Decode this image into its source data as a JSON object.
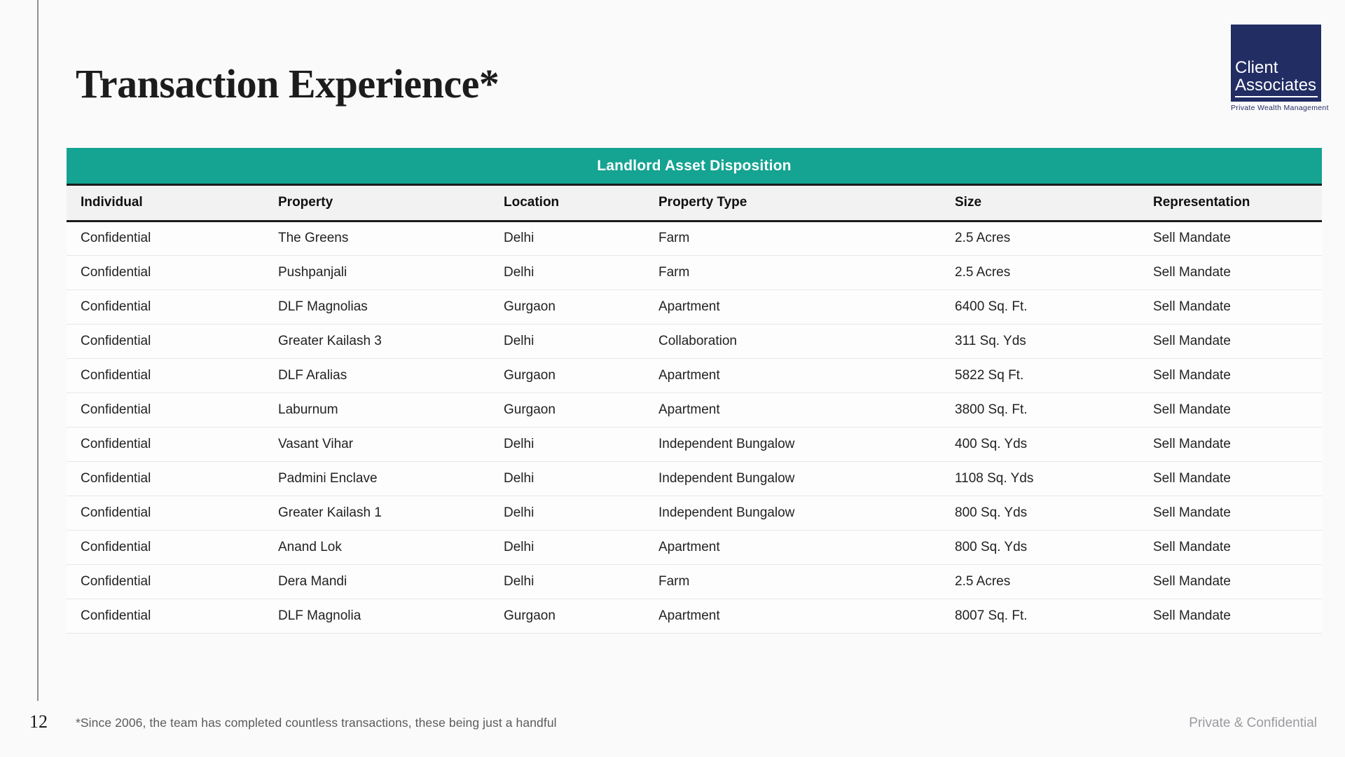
{
  "page": {
    "title": "Transaction Experience*",
    "page_number": "12",
    "footnote": "*Since 2006, the team has completed countless transactions, these being just a handful",
    "confidential_label": "Private & Confidential"
  },
  "logo": {
    "line1": "Client",
    "line2": "Associates",
    "tagline": "Private Wealth Management",
    "navy_color": "#222D64"
  },
  "table": {
    "banner": "Landlord Asset Disposition",
    "banner_color": "#15A392",
    "columns": [
      "Individual",
      "Property",
      "Location",
      "Property Type",
      "Size",
      "Representation"
    ],
    "rows": [
      [
        "Confidential",
        "The Greens",
        "Delhi",
        "Farm",
        "2.5 Acres",
        "Sell Mandate"
      ],
      [
        "Confidential",
        "Pushpanjali",
        "Delhi",
        "Farm",
        "2.5 Acres",
        "Sell Mandate"
      ],
      [
        "Confidential",
        "DLF Magnolias",
        "Gurgaon",
        "Apartment",
        "6400 Sq. Ft.",
        "Sell Mandate"
      ],
      [
        "Confidential",
        "Greater Kailash 3",
        "Delhi",
        "Collaboration",
        "311 Sq. Yds",
        "Sell Mandate"
      ],
      [
        "Confidential",
        "DLF Aralias",
        "Gurgaon",
        "Apartment",
        "5822 Sq Ft.",
        "Sell Mandate"
      ],
      [
        "Confidential",
        "Laburnum",
        "Gurgaon",
        "Apartment",
        "3800 Sq. Ft.",
        "Sell Mandate"
      ],
      [
        "Confidential",
        "Vasant Vihar",
        "Delhi",
        "Independent Bungalow",
        "400 Sq. Yds",
        "Sell Mandate"
      ],
      [
        "Confidential",
        "Padmini Enclave",
        "Delhi",
        "Independent Bungalow",
        "1108 Sq. Yds",
        "Sell Mandate"
      ],
      [
        "Confidential",
        "Greater Kailash 1",
        "Delhi",
        "Independent Bungalow",
        "800 Sq. Yds",
        "Sell Mandate"
      ],
      [
        "Confidential",
        "Anand Lok",
        "Delhi",
        "Apartment",
        "800 Sq. Yds",
        "Sell Mandate"
      ],
      [
        "Confidential",
        "Dera Mandi",
        "Delhi",
        "Farm",
        "2.5 Acres",
        "Sell Mandate"
      ],
      [
        "Confidential",
        "DLF Magnolia",
        "Gurgaon",
        "Apartment",
        "8007 Sq. Ft.",
        "Sell Mandate"
      ]
    ]
  }
}
